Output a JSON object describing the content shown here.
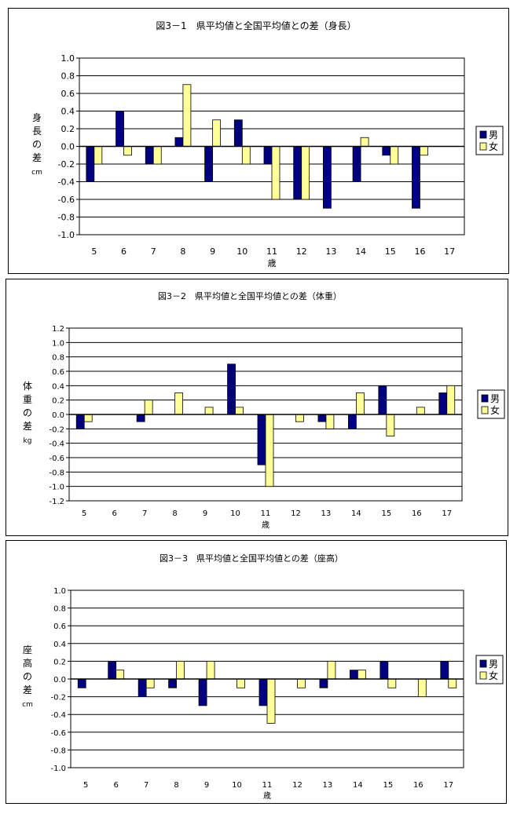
{
  "colors": {
    "male": "#000080",
    "female": "#FFFF99",
    "bar_outline": "#000000",
    "gridline": "#000000"
  },
  "chart_data": [
    {
      "type": "bar",
      "title": "図3－1　県平均値と全国平均値との差（身長）",
      "ylabel": [
        "身",
        "長",
        "の",
        "差",
        "cm"
      ],
      "xlabel": "歳",
      "categories": [
        "5",
        "6",
        "7",
        "8",
        "9",
        "10",
        "11",
        "12",
        "13",
        "14",
        "15",
        "16",
        "17"
      ],
      "ylim": [
        -1.0,
        1.0
      ],
      "ytick_step": 0.2,
      "yticks": [
        "1.0",
        "0.8",
        "0.6",
        "0.4",
        "0.2",
        "0.0",
        "-0.2",
        "-0.4",
        "-0.6",
        "-0.8",
        "-1.0"
      ],
      "grid": true,
      "legend_position": "right",
      "series": [
        {
          "name": "男",
          "color": "#000080",
          "values": [
            -0.4,
            0.4,
            -0.2,
            0.1,
            -0.4,
            0.3,
            -0.2,
            -0.6,
            -0.7,
            -0.4,
            -0.1,
            -0.7,
            0.0
          ]
        },
        {
          "name": "女",
          "color": "#FFFF99",
          "values": [
            -0.2,
            -0.1,
            -0.2,
            0.7,
            0.3,
            -0.2,
            -0.6,
            -0.6,
            0.0,
            0.1,
            -0.2,
            -0.1,
            0.0
          ]
        }
      ]
    },
    {
      "type": "bar",
      "title": "図3－2　県平均値と全国平均値との差（体重）",
      "ylabel": [
        "体",
        "重",
        "の",
        "差",
        "kg"
      ],
      "xlabel": "歳",
      "categories": [
        "5",
        "6",
        "7",
        "8",
        "9",
        "10",
        "11",
        "12",
        "13",
        "14",
        "15",
        "16",
        "17"
      ],
      "ylim": [
        -1.2,
        1.2
      ],
      "ytick_step": 0.2,
      "yticks": [
        "1.2",
        "1.0",
        "0.8",
        "0.6",
        "0.4",
        "0.2",
        "0.0",
        "-0.2",
        "-0.4",
        "-0.6",
        "-0.8",
        "-1.0",
        "-1.2"
      ],
      "grid": true,
      "legend_position": "right",
      "series": [
        {
          "name": "男",
          "color": "#000080",
          "values": [
            -0.2,
            0.0,
            -0.1,
            0.0,
            0.0,
            0.7,
            -0.7,
            0.0,
            -0.1,
            -0.2,
            0.4,
            0.0,
            0.3
          ]
        },
        {
          "name": "女",
          "color": "#FFFF99",
          "values": [
            -0.1,
            0.0,
            0.2,
            0.3,
            0.1,
            0.1,
            -1.0,
            -0.1,
            -0.2,
            0.3,
            -0.3,
            0.1,
            0.4
          ]
        }
      ]
    },
    {
      "type": "bar",
      "title": "図3－3　県平均値と全国平均値との差（座高）",
      "ylabel": [
        "座",
        "高",
        "の",
        "差",
        "cm"
      ],
      "xlabel": "歳",
      "categories": [
        "5",
        "6",
        "7",
        "8",
        "9",
        "10",
        "11",
        "12",
        "13",
        "14",
        "15",
        "16",
        "17"
      ],
      "ylim": [
        -1.0,
        1.0
      ],
      "ytick_step": 0.2,
      "yticks": [
        "1.0",
        "0.8",
        "0.6",
        "0.4",
        "0.2",
        "0.0",
        "-0.2",
        "-0.4",
        "-0.6",
        "-0.8",
        "-1.0"
      ],
      "grid": true,
      "legend_position": "right",
      "series": [
        {
          "name": "男",
          "color": "#000080",
          "values": [
            -0.1,
            0.2,
            -0.2,
            -0.1,
            -0.3,
            0.0,
            -0.3,
            0.0,
            -0.1,
            0.1,
            0.2,
            0.0,
            0.2
          ]
        },
        {
          "name": "女",
          "color": "#FFFF99",
          "values": [
            0.0,
            0.1,
            -0.1,
            0.2,
            0.2,
            -0.1,
            -0.5,
            -0.1,
            0.2,
            0.1,
            -0.1,
            -0.2,
            -0.1
          ]
        }
      ]
    }
  ]
}
